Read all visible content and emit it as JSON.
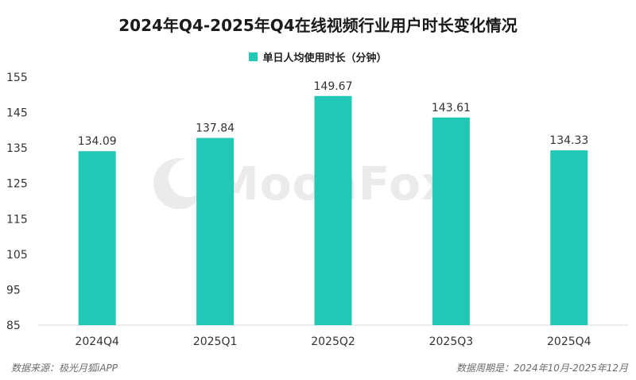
{
  "title": "2024年Q4-2025年Q4在线视频行业用户时长变化情况",
  "legend": {
    "label": "单日人均使用时长（分钟）"
  },
  "colors": {
    "bar": "#21c8b6",
    "grid": "#d9d9d9",
    "axis_text": "#333333"
  },
  "watermark": {
    "text": "MoonFox"
  },
  "footer": {
    "source": "数据来源：极光月狐iAPP",
    "period": "数据周期是：2024年10月-2025年12月"
  },
  "chart_data": {
    "type": "bar",
    "title": "2024年Q4-2025年Q4在线视频行业用户时长变化情况",
    "categories": [
      "2024Q4",
      "2025Q1",
      "2025Q2",
      "2025Q3",
      "2025Q4"
    ],
    "series": [
      {
        "name": "单日人均使用时长（分钟）",
        "values": [
          134.09,
          137.84,
          149.67,
          143.61,
          134.33
        ]
      }
    ],
    "value_labels": [
      "134.09",
      "137.84",
      "149.67",
      "143.61",
      "134.33"
    ],
    "ylim": [
      85,
      155
    ],
    "yticks": [
      85,
      95,
      105,
      115,
      125,
      135,
      145,
      155
    ],
    "grid": false,
    "legend_position": "top-center"
  }
}
